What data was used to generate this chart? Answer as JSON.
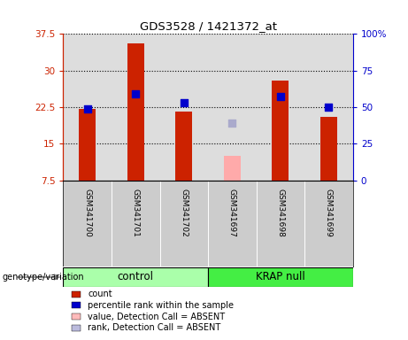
{
  "title": "GDS3528 / 1421372_at",
  "samples": [
    "GSM341700",
    "GSM341701",
    "GSM341702",
    "GSM341697",
    "GSM341698",
    "GSM341699"
  ],
  "count_values": [
    22.2,
    35.5,
    21.5,
    null,
    28.0,
    20.5
  ],
  "percentile_values": [
    49,
    59,
    53,
    null,
    57,
    50
  ],
  "absent_value": [
    null,
    null,
    null,
    12.5,
    null,
    null
  ],
  "absent_rank": [
    null,
    null,
    null,
    39,
    null,
    null
  ],
  "ylim_left": [
    7.5,
    37.5
  ],
  "ylim_right": [
    0,
    100
  ],
  "yticks_left": [
    7.5,
    15.0,
    22.5,
    30.0,
    37.5
  ],
  "yticks_right": [
    0,
    25,
    50,
    75,
    100
  ],
  "ytick_labels_left": [
    "7.5",
    "15",
    "22.5",
    "30",
    "37.5"
  ],
  "ytick_labels_right": [
    "0",
    "25",
    "50",
    "75",
    "100%"
  ],
  "left_axis_color": "#cc2200",
  "right_axis_color": "#0000cc",
  "bar_color": "#cc2200",
  "dot_color": "#0000cc",
  "absent_bar_color": "#ffaaaa",
  "absent_dot_color": "#aaaacc",
  "bar_width": 0.35,
  "dot_size": 30,
  "control_color": "#aaffaa",
  "krap_color": "#44ee44",
  "group_label": "genotype/variation",
  "legend_items": [
    {
      "label": "count",
      "color": "#cc2200"
    },
    {
      "label": "percentile rank within the sample",
      "color": "#0000cc"
    },
    {
      "label": "value, Detection Call = ABSENT",
      "color": "#ffbbbb"
    },
    {
      "label": "rank, Detection Call = ABSENT",
      "color": "#bbbbdd"
    }
  ],
  "bg_color": "#ffffff",
  "plot_bg_color": "#dddddd",
  "label_panel_color": "#cccccc"
}
